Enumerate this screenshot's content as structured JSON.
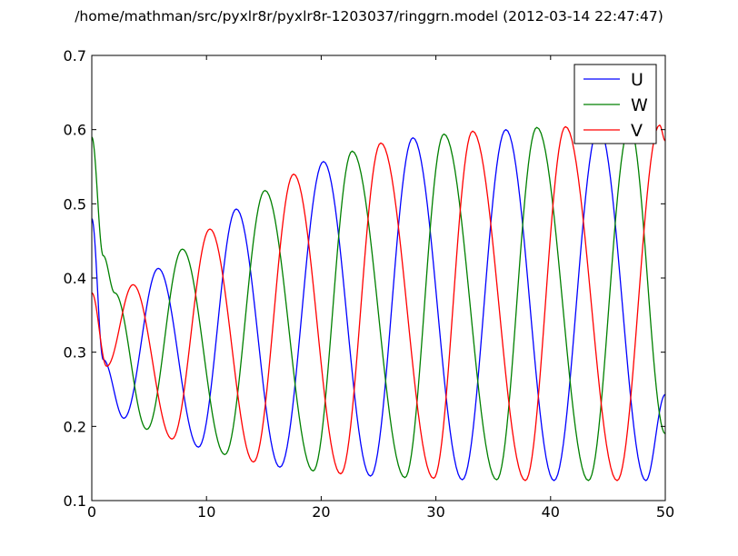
{
  "chart_data": {
    "type": "line",
    "title": "/home/mathman/src/pyxlr8r/pyxlr8r-1203037/ringgrn.model (2012-03-14 22:47:47)",
    "xlabel": "",
    "ylabel": "",
    "xlim": [
      0,
      50
    ],
    "ylim": [
      0.1,
      0.7
    ],
    "xticks": [
      0,
      10,
      20,
      30,
      40,
      50
    ],
    "yticks": [
      0.1,
      0.2,
      0.3,
      0.4,
      0.5,
      0.6,
      0.7
    ],
    "xtick_labels": [
      "0",
      "10",
      "20",
      "30",
      "40",
      "50"
    ],
    "ytick_labels": [
      "0.1",
      "0.2",
      "0.3",
      "0.4",
      "0.5",
      "0.6",
      "0.7"
    ],
    "grid": false,
    "legend_position": "top-right",
    "series": [
      {
        "name": "U",
        "color": "#0000ff",
        "points": [
          [
            0,
            0.48
          ],
          [
            1,
            0.29
          ],
          [
            2.8,
            0.211
          ],
          [
            5.8,
            0.413
          ],
          [
            9.3,
            0.172
          ],
          [
            12.6,
            0.493
          ],
          [
            16.4,
            0.145
          ],
          [
            20.2,
            0.557
          ],
          [
            24.3,
            0.133
          ],
          [
            28.0,
            0.589
          ],
          [
            32.3,
            0.128
          ],
          [
            36.1,
            0.6
          ],
          [
            40.3,
            0.127
          ],
          [
            44.2,
            0.604
          ],
          [
            48.3,
            0.127
          ],
          [
            50,
            0.243
          ]
        ]
      },
      {
        "name": "W",
        "color": "#008000",
        "points": [
          [
            0,
            0.59
          ],
          [
            1,
            0.43
          ],
          [
            2,
            0.38
          ],
          [
            4.8,
            0.196
          ],
          [
            7.9,
            0.439
          ],
          [
            11.6,
            0.162
          ],
          [
            15.1,
            0.518
          ],
          [
            19.3,
            0.14
          ],
          [
            22.7,
            0.571
          ],
          [
            27.3,
            0.131
          ],
          [
            30.7,
            0.594
          ],
          [
            35.3,
            0.128
          ],
          [
            38.8,
            0.603
          ],
          [
            43.3,
            0.127
          ],
          [
            46.9,
            0.605
          ],
          [
            50,
            0.19
          ]
        ]
      },
      {
        "name": "V",
        "color": "#ff0000",
        "points": [
          [
            0,
            0.38
          ],
          [
            1.3,
            0.281
          ],
          [
            3.6,
            0.391
          ],
          [
            7.0,
            0.183
          ],
          [
            10.3,
            0.466
          ],
          [
            14.1,
            0.152
          ],
          [
            17.6,
            0.54
          ],
          [
            21.7,
            0.136
          ],
          [
            25.2,
            0.582
          ],
          [
            29.8,
            0.13
          ],
          [
            33.2,
            0.598
          ],
          [
            37.8,
            0.127
          ],
          [
            41.3,
            0.604
          ],
          [
            45.8,
            0.127
          ],
          [
            49.5,
            0.606
          ],
          [
            50,
            0.585
          ]
        ]
      }
    ]
  }
}
